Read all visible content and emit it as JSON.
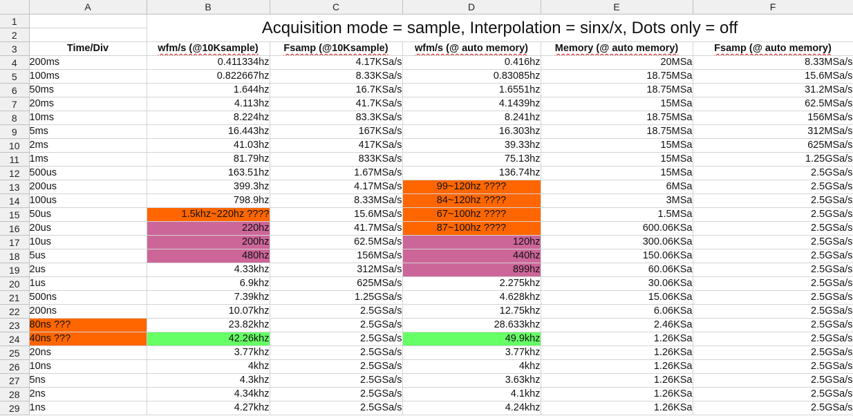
{
  "columns": [
    "A",
    "B",
    "C",
    "D",
    "E",
    "F"
  ],
  "title": "Acquisition mode = sample, Interpolation = sinx/x, Dots only = off",
  "headers": [
    "Time/Div",
    "wfm/s (@10Ksample)",
    "Fsamp  (@10Ksample)",
    "wfm/s (@ auto memory)",
    "Memory  (@ auto memory)",
    "Fsamp  (@ auto memory)"
  ],
  "highlight_colors": {
    "orange": "#ff6600",
    "pink": "#cc6699",
    "green": "#66ff66"
  },
  "rows": [
    {
      "n": "4",
      "a": "200ms",
      "b": "0.411334hz",
      "c": "4.17KSa/s",
      "d": "0.416hz",
      "e": "20MSa",
      "f": "8.33MSa/s"
    },
    {
      "n": "5",
      "a": "100ms",
      "b": "0.822667hz",
      "c": "8.33KSa/s",
      "d": "0.83085hz",
      "e": "18.75MSa",
      "f": "15.6MSa/s"
    },
    {
      "n": "6",
      "a": "50ms",
      "b": "1.644hz",
      "c": "16.7KSa/s",
      "d": "1.6551hz",
      "e": "18.75MSa",
      "f": "31.2MSa/s"
    },
    {
      "n": "7",
      "a": "20ms",
      "b": "4.113hz",
      "c": "41.7KSa/s",
      "d": "4.1439hz",
      "e": "15MSa",
      "f": "62.5MSa/s"
    },
    {
      "n": "8",
      "a": "10ms",
      "b": "8.224hz",
      "c": "83.3KSa/s",
      "d": "8.241hz",
      "e": "18.75MSa",
      "f": "156MSa/s"
    },
    {
      "n": "9",
      "a": "5ms",
      "b": "16.443hz",
      "c": "167KSa/s",
      "d": "16.303hz",
      "e": "18.75MSa",
      "f": "312MSa/s"
    },
    {
      "n": "10",
      "a": "2ms",
      "b": "41.03hz",
      "c": "417KSa/s",
      "d": "39.33hz",
      "e": "15MSa",
      "f": "625MSa/s"
    },
    {
      "n": "11",
      "a": "1ms",
      "b": "81.79hz",
      "c": "833KSa/s",
      "d": "75.13hz",
      "e": "15MSa",
      "f": "1.25GSa/s"
    },
    {
      "n": "12",
      "a": "500us",
      "b": "163.51hz",
      "c": "1.67MSa/s",
      "d": "136.74hz",
      "e": "15MSa",
      "f": "2.5GSa/s"
    },
    {
      "n": "13",
      "a": "200us",
      "b": "399.3hz",
      "c": "4.17MSa/s",
      "d": "99~120hz ????",
      "e": "6MSa",
      "f": "2.5GSa/s",
      "dc": "orange",
      "da": "center"
    },
    {
      "n": "14",
      "a": "100us",
      "b": "798.9hz",
      "c": "8.33MSa/s",
      "d": "84~120hz ????",
      "e": "3MSa",
      "f": "2.5GSa/s",
      "dc": "orange",
      "da": "center"
    },
    {
      "n": "15",
      "a": "50us",
      "b": "1.5khz~220hz ????",
      "c": "15.6MSa/s",
      "d": "67~100hz ????",
      "e": "1.5MSa",
      "f": "2.5GSa/s",
      "bc": "orange",
      "dc": "orange",
      "da": "center"
    },
    {
      "n": "16",
      "a": "20us",
      "b": "220hz",
      "c": "41.7MSa/s",
      "d": "87~100hz ????",
      "e": "600.06KSa",
      "f": "2.5GSa/s",
      "bc": "pink",
      "dc": "orange",
      "da": "center"
    },
    {
      "n": "17",
      "a": "10us",
      "b": "200hz",
      "c": "62.5MSa/s",
      "d": "120hz",
      "e": "300.06KSa",
      "f": "2.5GSa/s",
      "bc": "pink",
      "dc": "pink"
    },
    {
      "n": "18",
      "a": "5us",
      "b": "480hz",
      "c": "156MSa/s",
      "d": "440hz",
      "e": "150.06KSa",
      "f": "2.5GSa/s",
      "bc": "pink",
      "dc": "pink"
    },
    {
      "n": "19",
      "a": "2us",
      "b": "4.33khz",
      "c": "312MSa/s",
      "d": "899hz",
      "e": "60.06KSa",
      "f": "2.5GSa/s",
      "dc": "pink"
    },
    {
      "n": "20",
      "a": "1us",
      "b": "6.9khz",
      "c": "625MSa/s",
      "d": "2.275khz",
      "e": "30.06KSa",
      "f": "2.5GSa/s"
    },
    {
      "n": "21",
      "a": "500ns",
      "b": "7.39khz",
      "c": "1.25GSa/s",
      "d": "4.628khz",
      "e": "15.06KSa",
      "f": "2.5GSa/s"
    },
    {
      "n": "22",
      "a": "200ns",
      "b": "10.07khz",
      "c": "2.5GSa/s",
      "d": "12.75khz",
      "e": "6.06KSa",
      "f": "2.5GSa/s"
    },
    {
      "n": "23",
      "a": "80ns ???",
      "b": "23.82khz",
      "c": "2.5GSa/s",
      "d": "28.633khz",
      "e": "2.46KSa",
      "f": "2.5GSa/s",
      "ac": "orange"
    },
    {
      "n": "24",
      "a": "40ns ???",
      "b": "42.26khz",
      "c": "2.5GSa/s",
      "d": "49.9khz",
      "e": "1.26KSa",
      "f": "2.5GSa/s",
      "ac": "orange",
      "bc": "green",
      "dc": "green"
    },
    {
      "n": "25",
      "a": "20ns",
      "b": "3.77khz",
      "c": "2.5GSa/s",
      "d": "3.77khz",
      "e": "1.26KSa",
      "f": "2.5GSa/s"
    },
    {
      "n": "26",
      "a": "10ns",
      "b": "4khz",
      "c": "2.5GSa/s",
      "d": "4khz",
      "e": "1.26KSa",
      "f": "2.5GSa/s"
    },
    {
      "n": "27",
      "a": "5ns",
      "b": "4.3khz",
      "c": "2.5GSa/s",
      "d": "3.63khz",
      "e": "1.26KSa",
      "f": "2.5GSa/s"
    },
    {
      "n": "28",
      "a": "2ns",
      "b": "4.34khz",
      "c": "2.5GSa/s",
      "d": "4.1khz",
      "e": "1.26KSa",
      "f": "2.5GSa/s"
    },
    {
      "n": "29",
      "a": "1ns",
      "b": "4.27khz",
      "c": "2.5GSa/s",
      "d": "4.24khz",
      "e": "1.26KSa",
      "f": "2.5GSa/s"
    }
  ]
}
